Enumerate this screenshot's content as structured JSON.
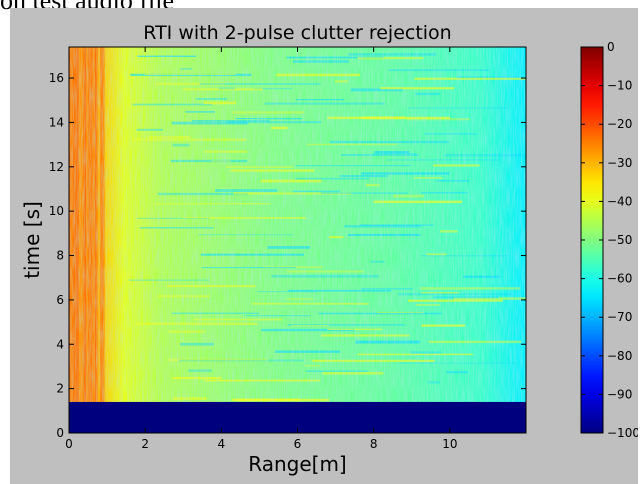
{
  "header": {
    "caption": "on test audio file"
  },
  "chart_data": {
    "type": "heatmap",
    "title": "RTI with 2-pulse clutter rejection",
    "xlabel": "Range[m]",
    "ylabel": "time [s]",
    "xlim": [
      0,
      12
    ],
    "ylim": [
      0,
      17.4
    ],
    "xticks": [
      0,
      2,
      4,
      6,
      8,
      10
    ],
    "yticks": [
      0,
      2,
      4,
      6,
      8,
      10,
      12,
      14,
      16
    ],
    "colormap": "jet",
    "colorbar": {
      "min": -100,
      "max": 0,
      "ticks": [
        0,
        -10,
        -20,
        -30,
        -40,
        -50,
        -60,
        -70,
        -80,
        -90,
        -100
      ]
    },
    "blank_region": {
      "time_range": [
        0,
        1.4
      ],
      "value": -100
    },
    "description_values": {
      "near_range_value": -25,
      "mid_range_value": -45,
      "far_range_value": -60
    },
    "colors": {
      "figure_background": "#bfbfbf",
      "blank_fill": "#00007f"
    }
  }
}
